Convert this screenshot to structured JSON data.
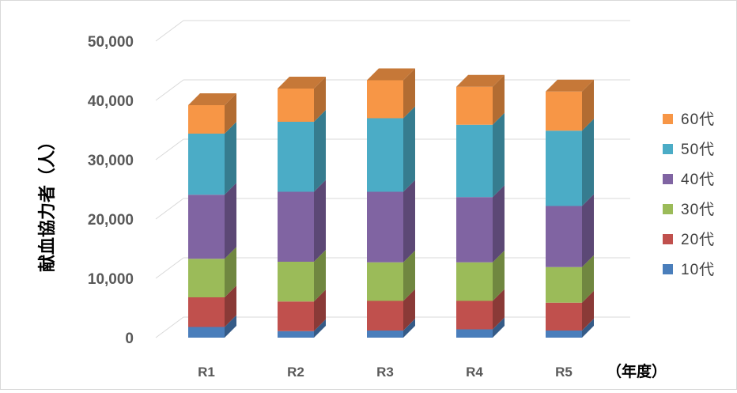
{
  "chart_data": {
    "type": "bar",
    "stacked": true,
    "three_d": true,
    "title": "",
    "xlabel": "",
    "ylabel": "献血協力者（人）",
    "x_unit_label": "（年度）",
    "categories": [
      "R1",
      "R2",
      "R3",
      "R4",
      "R5"
    ],
    "ylim": [
      0,
      50000
    ],
    "yticks": [
      0,
      10000,
      20000,
      30000,
      40000,
      50000
    ],
    "ytick_labels": [
      "0",
      "10,000",
      "20,000",
      "30,000",
      "40,000",
      "50,000"
    ],
    "grid": true,
    "legend_position": "right",
    "series": [
      {
        "name": "10代",
        "color": "#4a7ebb",
        "values": [
          1800,
          1100,
          1200,
          1400,
          1200
        ]
      },
      {
        "name": "20代",
        "color": "#c0504d",
        "values": [
          5000,
          5000,
          5000,
          4800,
          4700
        ]
      },
      {
        "name": "30代",
        "color": "#9bbb59",
        "values": [
          6500,
          6700,
          6500,
          6500,
          6000
        ]
      },
      {
        "name": "40代",
        "color": "#8064a2",
        "values": [
          10800,
          11800,
          11900,
          11000,
          10300
        ]
      },
      {
        "name": "50代",
        "color": "#4bacc6",
        "values": [
          10300,
          11800,
          12400,
          12200,
          12700
        ]
      },
      {
        "name": "60代",
        "color": "#f79646",
        "values": [
          4800,
          5600,
          6400,
          6400,
          6600
        ]
      }
    ]
  }
}
